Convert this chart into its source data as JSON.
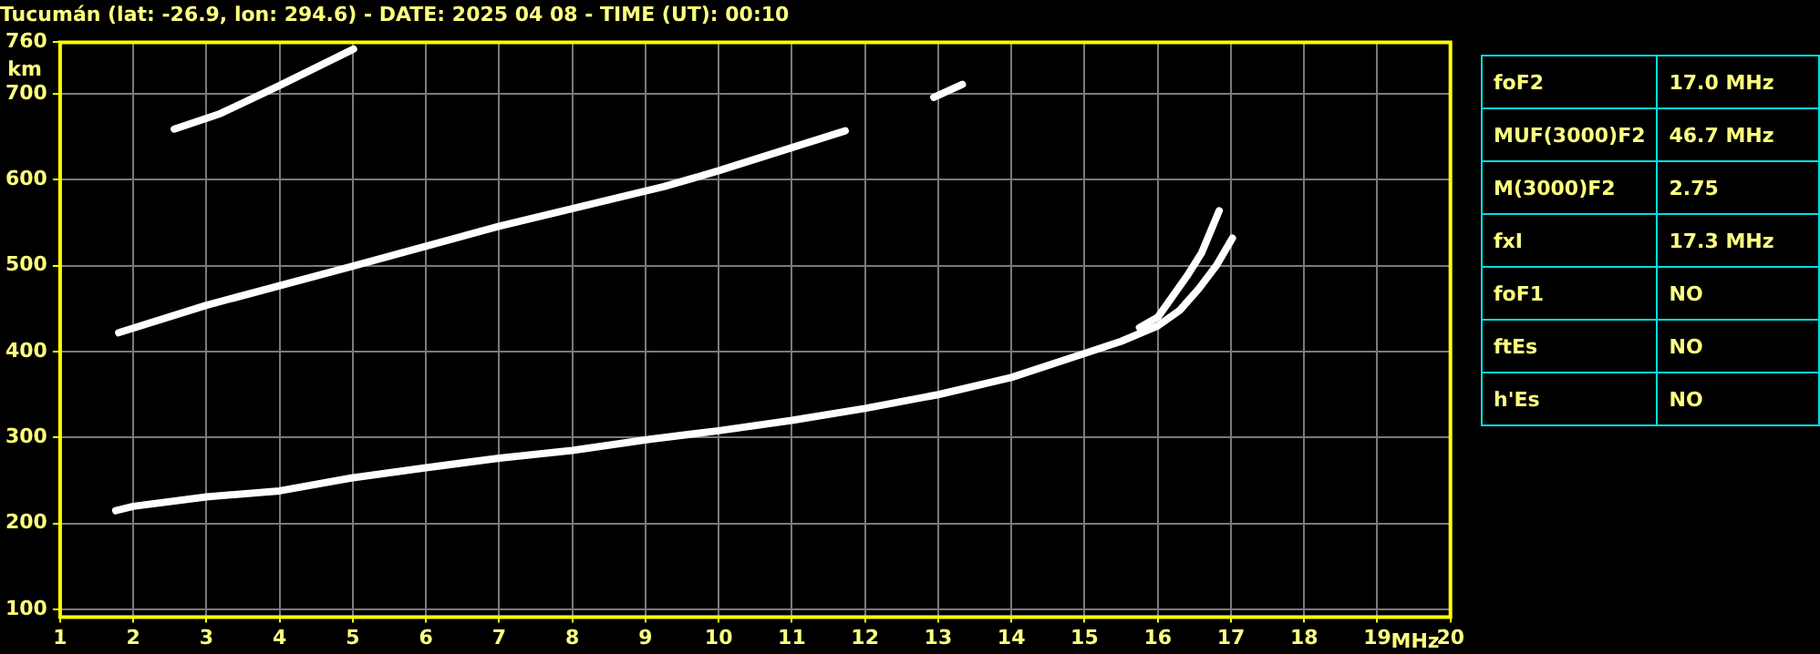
{
  "chart_data": [
    {
      "type": "line",
      "title": "Tucumán (lat: -26.9, lon: 294.6) - DATE: 2025 04 08 - TIME (UT): 00:10",
      "xlabel": "MHz",
      "ylabel": "km",
      "xlim": [
        1,
        20
      ],
      "xticks": [
        1,
        2,
        3,
        4,
        5,
        6,
        7,
        8,
        9,
        10,
        11,
        12,
        13,
        14,
        15,
        16,
        17,
        18,
        19,
        20
      ],
      "ylim": [
        91,
        760
      ],
      "yticks": [
        100,
        200,
        300,
        400,
        500,
        600,
        700,
        760
      ],
      "grid": true,
      "legend": false,
      "marker": "none",
      "line_style": "solid",
      "series": [
        {
          "color": "#ffffff",
          "x": [
            1.76,
            2,
            3,
            4,
            4.98,
            6,
            7,
            8,
            9.06,
            10,
            11,
            12,
            13,
            14,
            15,
            15.5,
            16,
            16.3,
            16.56,
            16.8,
            17.02
          ],
          "values": [
            215,
            220,
            231,
            238,
            253,
            265,
            276,
            285,
            298,
            308,
            320,
            334,
            350,
            370,
            398,
            412,
            430,
            448,
            473,
            500,
            532
          ]
        },
        {
          "color": "#ffffff",
          "x": [
            15.75,
            16,
            16.4,
            16.6,
            16.84
          ],
          "values": [
            428,
            440,
            488,
            515,
            564
          ]
        },
        {
          "color": "#ffffff",
          "x": [
            1.8,
            3,
            4.98,
            7,
            9.25,
            9.98,
            11.73
          ],
          "values": [
            422,
            454,
            499,
            546,
            592,
            610,
            657
          ]
        },
        {
          "color": "#ffffff",
          "x": [
            2.56,
            3.19,
            3.98,
            5.01
          ],
          "values": [
            659,
            677,
            709,
            752
          ]
        },
        {
          "color": "#ffffff",
          "x": [
            12.94,
            13.33
          ],
          "values": [
            696,
            711
          ]
        }
      ]
    },
    {
      "type": "other",
      "categories": [
        "foF2",
        "MUF(3000)F2",
        "M(3000)F2",
        "fxI",
        "foF1",
        "ftEs",
        "h'Es"
      ],
      "value_labels": [
        "17.0 MHz",
        "46.7 MHz",
        "2.75",
        "17.3 MHz",
        "NO",
        "NO",
        "NO"
      ]
    }
  ]
}
